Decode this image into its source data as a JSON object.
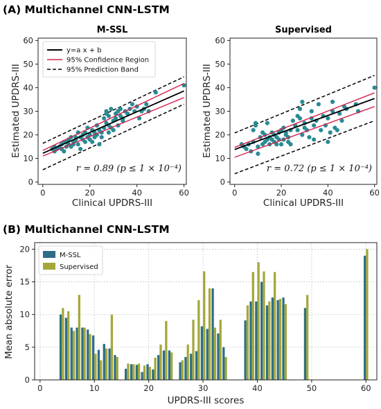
{
  "panel_a_title": "(A) Multichannel CNN-LSTM",
  "panel_b_title": "(B) Multichannel CNN-LSTM",
  "colors": {
    "point": "#2a8a94",
    "fit_line": "#000000",
    "confidence": "#d6204a",
    "prediction": "#000000",
    "bar_mssl": "#2e6e86",
    "bar_supervised": "#a4a83a"
  },
  "chart_data": [
    {
      "type": "scatter",
      "title": "M-SSL",
      "xlabel": "Clinical UPDRS-III",
      "ylabel": "Estimated UPDRS-III",
      "xlim": [
        -2,
        61
      ],
      "ylim": [
        -1,
        61
      ],
      "xticks": [
        0,
        20,
        40,
        60
      ],
      "yticks": [
        0,
        10,
        20,
        30,
        40,
        50,
        60
      ],
      "legend": {
        "position": "top-left",
        "entries": [
          "y=a x + b",
          "95% Confidence Region",
          "95% Prediction Band"
        ]
      },
      "annotation": "r = 0.89 (p ≤ 1 × 10⁻⁴)",
      "fit": {
        "slope": 0.44,
        "intercept": 12.2
      },
      "confidence_band": {
        "lower": [
          11.0,
          35.8
        ],
        "upper": [
          13.4,
          41.8
        ]
      },
      "prediction_band": {
        "lower": [
          5.2,
          33.0
        ],
        "upper": [
          16.4,
          44.6
        ]
      },
      "points": [
        [
          4,
          14
        ],
        [
          5,
          13
        ],
        [
          5,
          15
        ],
        [
          6,
          14
        ],
        [
          7,
          15
        ],
        [
          8,
          16
        ],
        [
          8,
          14
        ],
        [
          9,
          13
        ],
        [
          9,
          17
        ],
        [
          10,
          15
        ],
        [
          10,
          17
        ],
        [
          11,
          18
        ],
        [
          11,
          16
        ],
        [
          12,
          15
        ],
        [
          12,
          19
        ],
        [
          13,
          17
        ],
        [
          13,
          16
        ],
        [
          14,
          19
        ],
        [
          14,
          18
        ],
        [
          15,
          16
        ],
        [
          15,
          21
        ],
        [
          16,
          14
        ],
        [
          16,
          19
        ],
        [
          17,
          18
        ],
        [
          17,
          20
        ],
        [
          18,
          17
        ],
        [
          18,
          21
        ],
        [
          19,
          19
        ],
        [
          19,
          23
        ],
        [
          20,
          18
        ],
        [
          20,
          20
        ],
        [
          21,
          22
        ],
        [
          21,
          17
        ],
        [
          22,
          21
        ],
        [
          22,
          19
        ],
        [
          23,
          20
        ],
        [
          23,
          24
        ],
        [
          24,
          16
        ],
        [
          24,
          22
        ],
        [
          25,
          19
        ],
        [
          25,
          21
        ],
        [
          26,
          23
        ],
        [
          26,
          27
        ],
        [
          27,
          25
        ],
        [
          27,
          29
        ],
        [
          27,
          30
        ],
        [
          28,
          21
        ],
        [
          28,
          28
        ],
        [
          28,
          24
        ],
        [
          29,
          23
        ],
        [
          29,
          31
        ],
        [
          30,
          26
        ],
        [
          30,
          22
        ],
        [
          31,
          27
        ],
        [
          31,
          29
        ],
        [
          32,
          30
        ],
        [
          32,
          24
        ],
        [
          33,
          28
        ],
        [
          33,
          31
        ],
        [
          34,
          27
        ],
        [
          34,
          26
        ],
        [
          35,
          30
        ],
        [
          36,
          29
        ],
        [
          37,
          31
        ],
        [
          38,
          33
        ],
        [
          39,
          30
        ],
        [
          40,
          32
        ],
        [
          41,
          27
        ],
        [
          42,
          30
        ],
        [
          43,
          31
        ],
        [
          44,
          33
        ],
        [
          45,
          30
        ],
        [
          48,
          38
        ],
        [
          60,
          41
        ]
      ]
    },
    {
      "type": "scatter",
      "title": "Supervised",
      "xlabel": "Clinical UPDRS-III",
      "ylabel": "Estimated UPDRS-III",
      "xlim": [
        -2,
        61
      ],
      "ylim": [
        -1,
        61
      ],
      "xticks": [
        0,
        20,
        40,
        60
      ],
      "yticks": [
        0,
        10,
        20,
        30,
        40,
        50,
        60
      ],
      "annotation": "r = 0.72 (p ≤ 1 × 10⁻⁴)",
      "fit": {
        "slope": 0.36,
        "intercept": 13.8
      },
      "confidence_band": {
        "lower": [
          10.5,
          32.0
        ],
        "upper": [
          14.7,
          37.8
        ]
      },
      "prediction_band": {
        "lower": [
          3.5,
          26.0
        ],
        "upper": [
          20.8,
          45.2
        ]
      },
      "points": [
        [
          3,
          16
        ],
        [
          4,
          15
        ],
        [
          5,
          14
        ],
        [
          6,
          16
        ],
        [
          7,
          13
        ],
        [
          8,
          17
        ],
        [
          8,
          22
        ],
        [
          9,
          24
        ],
        [
          9,
          25
        ],
        [
          10,
          15
        ],
        [
          10,
          12
        ],
        [
          11,
          19
        ],
        [
          12,
          16
        ],
        [
          12,
          21
        ],
        [
          13,
          17
        ],
        [
          13,
          20
        ],
        [
          14,
          18
        ],
        [
          14,
          25
        ],
        [
          15,
          19
        ],
        [
          15,
          16
        ],
        [
          16,
          21
        ],
        [
          16,
          18
        ],
        [
          17,
          17
        ],
        [
          17,
          20
        ],
        [
          18,
          16
        ],
        [
          18,
          19
        ],
        [
          19,
          21
        ],
        [
          19,
          18
        ],
        [
          20,
          16
        ],
        [
          20,
          22
        ],
        [
          21,
          23
        ],
        [
          21,
          18
        ],
        [
          22,
          20
        ],
        [
          22,
          21
        ],
        [
          23,
          19
        ],
        [
          23,
          17
        ],
        [
          24,
          22
        ],
        [
          24,
          16
        ],
        [
          25,
          26
        ],
        [
          26,
          24
        ],
        [
          27,
          28
        ],
        [
          27,
          22
        ],
        [
          28,
          27
        ],
        [
          28,
          31
        ],
        [
          29,
          34
        ],
        [
          29,
          20
        ],
        [
          30,
          25
        ],
        [
          30,
          23
        ],
        [
          31,
          22
        ],
        [
          32,
          19
        ],
        [
          33,
          27
        ],
        [
          33,
          30
        ],
        [
          34,
          24
        ],
        [
          34,
          18
        ],
        [
          35,
          26
        ],
        [
          36,
          33
        ],
        [
          37,
          22
        ],
        [
          38,
          28
        ],
        [
          39,
          24
        ],
        [
          40,
          17
        ],
        [
          40,
          27
        ],
        [
          41,
          21
        ],
        [
          42,
          34
        ],
        [
          42,
          30
        ],
        [
          43,
          23
        ],
        [
          44,
          22
        ],
        [
          45,
          29
        ],
        [
          46,
          26
        ],
        [
          47,
          32
        ],
        [
          48,
          31
        ],
        [
          52,
          33
        ],
        [
          53,
          30
        ],
        [
          60,
          40
        ]
      ]
    },
    {
      "type": "bar",
      "xlabel": "UPDRS-III scores",
      "ylabel": "Mean absolute error",
      "xlim": [
        -1,
        62
      ],
      "ylim": [
        0,
        21
      ],
      "xticks": [
        0,
        10,
        20,
        30,
        40,
        50,
        60
      ],
      "yticks": [
        0,
        5,
        10,
        15,
        20
      ],
      "grid": true,
      "legend": {
        "position": "top-left"
      },
      "categories": [
        4,
        5,
        6,
        7,
        8,
        9,
        10,
        11,
        12,
        13,
        14,
        16,
        17,
        18,
        19,
        20,
        21,
        22,
        23,
        24,
        26,
        27,
        28,
        29,
        30,
        31,
        32,
        33,
        34,
        38,
        39,
        40,
        41,
        42,
        43,
        44,
        45,
        49,
        60
      ],
      "series": [
        {
          "name": "M-SSL",
          "values": [
            10,
            9.5,
            8,
            8,
            8,
            7.7,
            6.8,
            4.6,
            5.5,
            4.8,
            3.8,
            1.7,
            2.4,
            2.3,
            1.2,
            2.4,
            1.6,
            3.8,
            4.5,
            4.5,
            2.7,
            3.5,
            4.0,
            4.4,
            8.2,
            7.8,
            14.0,
            7.1,
            5.0,
            9.1,
            12.0,
            12.0,
            15.0,
            11.4,
            12.6,
            12.2,
            12.6,
            11.0,
            19.0
          ]
        },
        {
          "name": "Supervised",
          "values": [
            11,
            10.5,
            7.5,
            13,
            8,
            7,
            4,
            3,
            4.8,
            10,
            3.5,
            2.5,
            2.4,
            2.5,
            2.2,
            2,
            3.4,
            5.4,
            9.0,
            4.2,
            3.0,
            5.4,
            9.2,
            12.2,
            16.6,
            14.0,
            8.0,
            9.2,
            3.5,
            11.4,
            16.5,
            18.0,
            16.6,
            12.0,
            16.5,
            12.4,
            11.6,
            13.0,
            20.0
          ]
        }
      ]
    }
  ]
}
